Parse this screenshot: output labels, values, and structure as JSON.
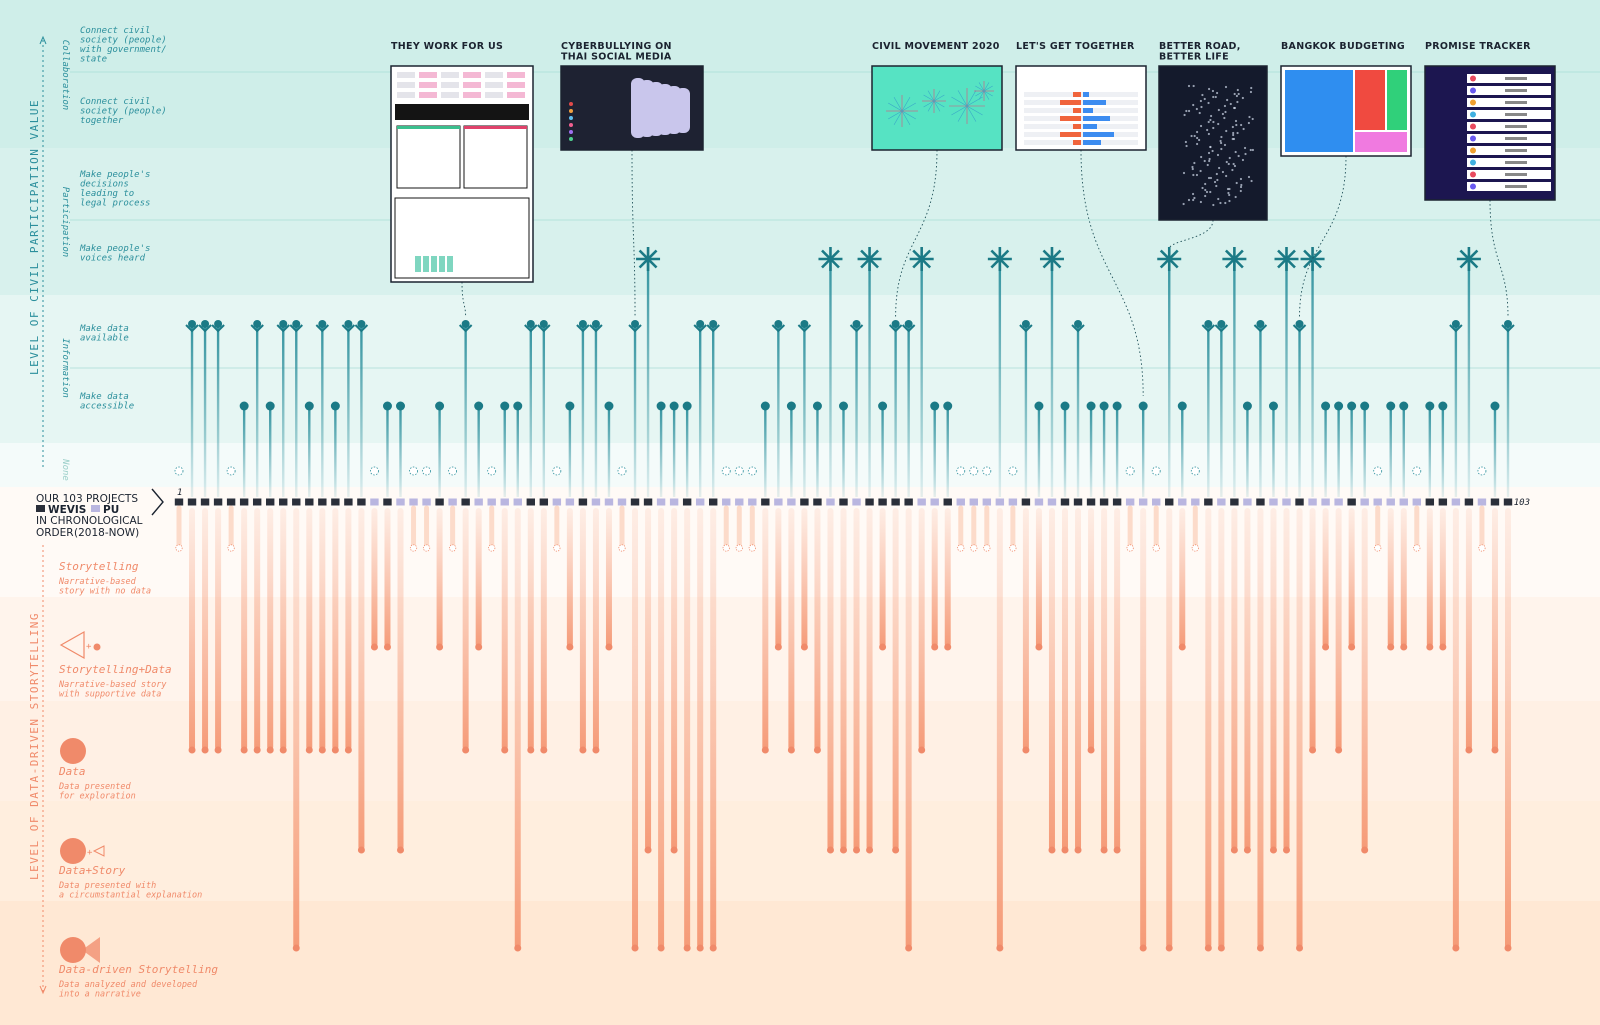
{
  "colors": {
    "civic_accent": "#2b8f9c",
    "civic_dark": "#1b7a86",
    "data_accent": "#f08a6a",
    "wevis": "#2a2f3a",
    "pu": "#b9b6e0",
    "band_top": "#cfeee9",
    "band_mid": "#e6f6f3",
    "band_low": "#f2fbf9",
    "story_band_1": "#fff4ec",
    "story_band_2": "#ffeede",
    "story_band_3": "#ffe8d4"
  },
  "axes": {
    "civic_title": "LEVEL OF CIVIL PARTICIPATION VALUE",
    "data_title": "LEVEL OF DATA-DRIVEN STORYTELLING"
  },
  "civic_groups": [
    {
      "name": "Collaboration"
    },
    {
      "name": "Participation"
    },
    {
      "name": "Information"
    },
    {
      "name": "None"
    }
  ],
  "civic_levels": [
    {
      "key": "collab_gov",
      "text": [
        "Connect civil",
        "society (people)",
        "with government/",
        "state"
      ]
    },
    {
      "key": "collab_people",
      "text": [
        "Connect civil",
        "society (people)",
        "together"
      ]
    },
    {
      "key": "legal",
      "text": [
        "Make people's",
        "decisions",
        "leading to",
        "legal process"
      ]
    },
    {
      "key": "voices",
      "text": [
        "Make people's",
        "voices heard"
      ]
    },
    {
      "key": "available",
      "text": [
        "Make data",
        "available"
      ]
    },
    {
      "key": "accessible",
      "text": [
        "Make data",
        "accessible"
      ]
    }
  ],
  "legend": {
    "line1": "OUR 103 PROJECTS",
    "wevis": "WEVIS",
    "pu": "PU",
    "line3": "IN CHRONOLOGICAL",
    "line4": "ORDER",
    "years": "(2018-NOW)",
    "start_index": "1",
    "end_index": "103"
  },
  "story_levels": [
    {
      "name": "Storytelling",
      "desc": [
        "Narrative-based",
        "story with no data"
      ]
    },
    {
      "name": "Storytelling+Data",
      "desc": [
        "Narrative-based story",
        "with supportive data"
      ]
    },
    {
      "name": "Data",
      "desc": [
        "Data presented",
        "for exploration"
      ]
    },
    {
      "name": "Data+Story",
      "desc": [
        "Data presented with",
        "a circumstantial explanation"
      ]
    },
    {
      "name": "Data-driven Storytelling",
      "desc": [
        "Data analyzed and developed",
        "into a narrative"
      ]
    }
  ],
  "featured_projects": [
    {
      "title": [
        "THEY WORK FOR US"
      ],
      "project": 23
    },
    {
      "title": [
        "CYBERBULLYING ON",
        "THAI SOCIAL MEDIA"
      ],
      "project": 36
    },
    {
      "title": [
        "CIVIL MOVEMENT 2020"
      ],
      "project": 56
    },
    {
      "title": [
        "LET'S GET TOGETHER"
      ],
      "project": 75
    },
    {
      "title": [
        "BETTER ROAD,",
        "BETTER LIFE"
      ],
      "project": 77
    },
    {
      "title": [
        "BANGKOK BUDGETING"
      ],
      "project": 87
    },
    {
      "title": [
        "PROMISE TRACKER"
      ],
      "project": 103
    }
  ],
  "chart_data": {
    "type": "table",
    "x_label": "project index in chronological order",
    "x": [
      1,
      103
    ],
    "civic_scale": [
      "none",
      "accessible",
      "available",
      "voices",
      "legal",
      "collab_people",
      "collab_gov"
    ],
    "story_scale": [
      "Storytelling",
      "Storytelling+Data",
      "Data",
      "Data+Story",
      "Data-driven Storytelling"
    ],
    "projects": [
      {
        "i": 1,
        "org": "wevis",
        "civic": "none",
        "story": 0
      },
      {
        "i": 2,
        "org": "wevis",
        "civic": "available",
        "story": 2
      },
      {
        "i": 3,
        "org": "wevis",
        "civic": "available",
        "story": 2
      },
      {
        "i": 4,
        "org": "wevis",
        "civic": "available",
        "story": 2
      },
      {
        "i": 5,
        "org": "wevis",
        "civic": "none",
        "story": 0
      },
      {
        "i": 6,
        "org": "wevis",
        "civic": "accessible",
        "story": 2
      },
      {
        "i": 7,
        "org": "wevis",
        "civic": "available",
        "story": 2
      },
      {
        "i": 8,
        "org": "wevis",
        "civic": "accessible",
        "story": 2
      },
      {
        "i": 9,
        "org": "wevis",
        "civic": "available",
        "story": 2
      },
      {
        "i": 10,
        "org": "wevis",
        "civic": "available",
        "story": 4
      },
      {
        "i": 11,
        "org": "wevis",
        "civic": "accessible",
        "story": 2
      },
      {
        "i": 12,
        "org": "wevis",
        "civic": "available",
        "story": 2
      },
      {
        "i": 13,
        "org": "wevis",
        "civic": "accessible",
        "story": 2
      },
      {
        "i": 14,
        "org": "wevis",
        "civic": "available",
        "story": 2
      },
      {
        "i": 15,
        "org": "wevis",
        "civic": "available",
        "story": 3
      },
      {
        "i": 16,
        "org": "pu",
        "civic": "none",
        "story": 1
      },
      {
        "i": 17,
        "org": "wevis",
        "civic": "accessible",
        "story": 1
      },
      {
        "i": 18,
        "org": "pu",
        "civic": "accessible",
        "story": 3
      },
      {
        "i": 19,
        "org": "pu",
        "civic": "none",
        "story": 0
      },
      {
        "i": 20,
        "org": "pu",
        "civic": "none",
        "story": 0
      },
      {
        "i": 21,
        "org": "wevis",
        "civic": "accessible",
        "story": 1
      },
      {
        "i": 22,
        "org": "pu",
        "civic": "none",
        "story": 0
      },
      {
        "i": 23,
        "org": "wevis",
        "civic": "available",
        "story": 2
      },
      {
        "i": 24,
        "org": "pu",
        "civic": "accessible",
        "story": 1
      },
      {
        "i": 25,
        "org": "pu",
        "civic": "none",
        "story": 0
      },
      {
        "i": 26,
        "org": "pu",
        "civic": "accessible",
        "story": 2
      },
      {
        "i": 27,
        "org": "pu",
        "civic": "accessible",
        "story": 4
      },
      {
        "i": 28,
        "org": "wevis",
        "civic": "available",
        "story": 2
      },
      {
        "i": 29,
        "org": "wevis",
        "civic": "available",
        "story": 2
      },
      {
        "i": 30,
        "org": "pu",
        "civic": "none",
        "story": 0
      },
      {
        "i": 31,
        "org": "pu",
        "civic": "accessible",
        "story": 1
      },
      {
        "i": 32,
        "org": "wevis",
        "civic": "available",
        "story": 2
      },
      {
        "i": 33,
        "org": "pu",
        "civic": "available",
        "story": 2
      },
      {
        "i": 34,
        "org": "pu",
        "civic": "accessible",
        "story": 1
      },
      {
        "i": 35,
        "org": "pu",
        "civic": "none",
        "story": 0
      },
      {
        "i": 36,
        "org": "wevis",
        "civic": "available",
        "story": 4
      },
      {
        "i": 37,
        "org": "wevis",
        "civic": "voices",
        "story": 3
      },
      {
        "i": 38,
        "org": "pu",
        "civic": "accessible",
        "story": 4
      },
      {
        "i": 39,
        "org": "pu",
        "civic": "accessible",
        "story": 3
      },
      {
        "i": 40,
        "org": "wevis",
        "civic": "accessible",
        "story": 4
      },
      {
        "i": 41,
        "org": "pu",
        "civic": "available",
        "story": 4
      },
      {
        "i": 42,
        "org": "wevis",
        "civic": "available",
        "story": 4
      },
      {
        "i": 43,
        "org": "pu",
        "civic": "none",
        "story": 0
      },
      {
        "i": 44,
        "org": "pu",
        "civic": "none",
        "story": 0
      },
      {
        "i": 45,
        "org": "pu",
        "civic": "none",
        "story": 0
      },
      {
        "i": 46,
        "org": "wevis",
        "civic": "accessible",
        "story": 2
      },
      {
        "i": 47,
        "org": "pu",
        "civic": "available",
        "story": 1
      },
      {
        "i": 48,
        "org": "pu",
        "civic": "accessible",
        "story": 2
      },
      {
        "i": 49,
        "org": "wevis",
        "civic": "available",
        "story": 1
      },
      {
        "i": 50,
        "org": "wevis",
        "civic": "accessible",
        "story": 2
      },
      {
        "i": 51,
        "org": "pu",
        "civic": "voices",
        "story": 3
      },
      {
        "i": 52,
        "org": "wevis",
        "civic": "accessible",
        "story": 3
      },
      {
        "i": 53,
        "org": "pu",
        "civic": "available",
        "story": 3
      },
      {
        "i": 54,
        "org": "wevis",
        "civic": "voices",
        "story": 3
      },
      {
        "i": 55,
        "org": "wevis",
        "civic": "accessible",
        "story": 1
      },
      {
        "i": 56,
        "org": "wevis",
        "civic": "available",
        "story": 3
      },
      {
        "i": 57,
        "org": "wevis",
        "civic": "available",
        "story": 4
      },
      {
        "i": 58,
        "org": "pu",
        "civic": "voices",
        "story": 2
      },
      {
        "i": 59,
        "org": "pu",
        "civic": "accessible",
        "story": 1
      },
      {
        "i": 60,
        "org": "wevis",
        "civic": "accessible",
        "story": 1
      },
      {
        "i": 61,
        "org": "pu",
        "civic": "none",
        "story": 0
      },
      {
        "i": 62,
        "org": "pu",
        "civic": "none",
        "story": 0
      },
      {
        "i": 63,
        "org": "pu",
        "civic": "none",
        "story": 0
      },
      {
        "i": 64,
        "org": "pu",
        "civic": "voices",
        "story": 4
      },
      {
        "i": 65,
        "org": "pu",
        "civic": "none",
        "story": 0
      },
      {
        "i": 66,
        "org": "wevis",
        "civic": "available",
        "story": 2
      },
      {
        "i": 67,
        "org": "pu",
        "civic": "accessible",
        "story": 1
      },
      {
        "i": 68,
        "org": "pu",
        "civic": "voices",
        "story": 3
      },
      {
        "i": 69,
        "org": "wevis",
        "civic": "accessible",
        "story": 3
      },
      {
        "i": 70,
        "org": "wevis",
        "civic": "available",
        "story": 3
      },
      {
        "i": 71,
        "org": "wevis",
        "civic": "accessible",
        "story": 2
      },
      {
        "i": 72,
        "org": "wevis",
        "civic": "accessible",
        "story": 3
      },
      {
        "i": 73,
        "org": "wevis",
        "civic": "accessible",
        "story": 3
      },
      {
        "i": 74,
        "org": "pu",
        "civic": "none",
        "story": 0
      },
      {
        "i": 75,
        "org": "pu",
        "civic": "accessible",
        "story": 4
      },
      {
        "i": 76,
        "org": "pu",
        "civic": "none",
        "story": 0
      },
      {
        "i": 77,
        "org": "wevis",
        "civic": "voices",
        "story": 4
      },
      {
        "i": 78,
        "org": "pu",
        "civic": "accessible",
        "story": 1
      },
      {
        "i": 79,
        "org": "pu",
        "civic": "none",
        "story": 0
      },
      {
        "i": 80,
        "org": "wevis",
        "civic": "available",
        "story": 4
      },
      {
        "i": 81,
        "org": "pu",
        "civic": "available",
        "story": 4
      },
      {
        "i": 82,
        "org": "wevis",
        "civic": "voices",
        "story": 3
      },
      {
        "i": 83,
        "org": "pu",
        "civic": "accessible",
        "story": 3
      },
      {
        "i": 84,
        "org": "wevis",
        "civic": "available",
        "story": 4
      },
      {
        "i": 85,
        "org": "pu",
        "civic": "accessible",
        "story": 3
      },
      {
        "i": 86,
        "org": "pu",
        "civic": "voices",
        "story": 3
      },
      {
        "i": 87,
        "org": "wevis",
        "civic": "available",
        "story": 4
      },
      {
        "i": 88,
        "org": "pu",
        "civic": "voices",
        "story": 2
      },
      {
        "i": 89,
        "org": "pu",
        "civic": "accessible",
        "story": 1
      },
      {
        "i": 90,
        "org": "pu",
        "civic": "accessible",
        "story": 2
      },
      {
        "i": 91,
        "org": "wevis",
        "civic": "accessible",
        "story": 1
      },
      {
        "i": 92,
        "org": "pu",
        "civic": "accessible",
        "story": 3
      },
      {
        "i": 93,
        "org": "pu",
        "civic": "none",
        "story": 0
      },
      {
        "i": 94,
        "org": "pu",
        "civic": "accessible",
        "story": 1
      },
      {
        "i": 95,
        "org": "pu",
        "civic": "accessible",
        "story": 1
      },
      {
        "i": 96,
        "org": "pu",
        "civic": "none",
        "story": 0
      },
      {
        "i": 97,
        "org": "wevis",
        "civic": "accessible",
        "story": 1
      },
      {
        "i": 98,
        "org": "wevis",
        "civic": "accessible",
        "story": 1
      },
      {
        "i": 99,
        "org": "pu",
        "civic": "available",
        "story": 4
      },
      {
        "i": 100,
        "org": "wevis",
        "civic": "voices",
        "story": 2
      },
      {
        "i": 101,
        "org": "pu",
        "civic": "none",
        "story": 0
      },
      {
        "i": 102,
        "org": "wevis",
        "civic": "accessible",
        "story": 2
      },
      {
        "i": 103,
        "org": "wevis",
        "civic": "available",
        "story": 4
      }
    ]
  }
}
